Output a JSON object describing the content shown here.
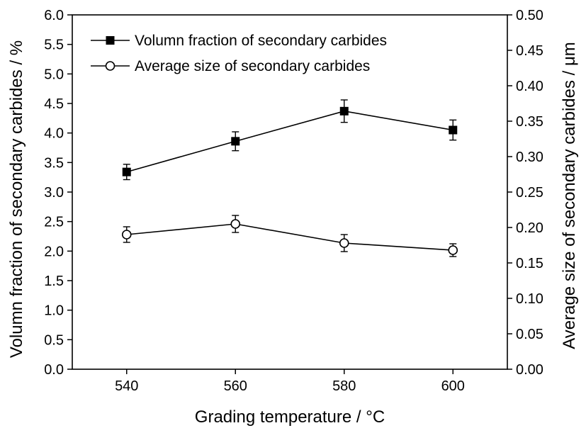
{
  "chart_data": {
    "type": "line",
    "x": [
      540,
      560,
      580,
      600
    ],
    "xlabel": "Grading temperature / °C",
    "x_ticks": [
      "540",
      "560",
      "580",
      "600"
    ],
    "xlim": [
      530,
      610
    ],
    "y_left": {
      "label": "Volumn fraction of secondary carbides / %",
      "ylim": [
        0.0,
        6.0
      ],
      "ticks": [
        "0.0",
        "0.5",
        "1.0",
        "1.5",
        "2.0",
        "2.5",
        "3.0",
        "3.5",
        "4.0",
        "4.5",
        "5.0",
        "5.5",
        "6.0"
      ]
    },
    "y_right": {
      "label": "Average size of secondary carbides / μm",
      "ylim": [
        0.0,
        0.5
      ],
      "ticks": [
        "0.00",
        "0.05",
        "0.10",
        "0.15",
        "0.20",
        "0.25",
        "0.30",
        "0.35",
        "0.40",
        "0.45",
        "0.50"
      ]
    },
    "series": [
      {
        "name": "Volumn fraction of secondary carbides",
        "axis": "left",
        "marker": "filled-square",
        "values": [
          3.34,
          3.86,
          4.37,
          4.05
        ],
        "errors": [
          0.13,
          0.16,
          0.19,
          0.17
        ]
      },
      {
        "name": "Average size of secondary carbides",
        "axis": "right",
        "marker": "open-circle",
        "values": [
          0.19,
          0.205,
          0.178,
          0.168
        ],
        "errors": [
          0.011,
          0.012,
          0.012,
          0.009
        ]
      }
    ],
    "legend_position": "top-left",
    "grid": false,
    "colors": {
      "line": "#000000",
      "background": "#ffffff"
    }
  }
}
